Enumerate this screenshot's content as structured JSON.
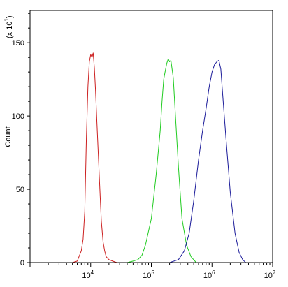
{
  "chart_data": {
    "type": "line",
    "title": "",
    "xlabel": "",
    "ylabel": "Count",
    "y_multiplier_label": "(x 10",
    "y_multiplier_exp": "1",
    "y_multiplier_close": ")",
    "x_scale": "log",
    "xlim": [
      1000,
      10000000
    ],
    "ylim": [
      0,
      172
    ],
    "y_ticks": [
      0,
      50,
      100,
      150
    ],
    "x_tick_labels": [
      {
        "base": "10",
        "exp": "4",
        "value": 10000
      },
      {
        "base": "10",
        "exp": "5",
        "value": 100000
      },
      {
        "base": "10",
        "exp": "6",
        "value": 1000000
      },
      {
        "base": "10",
        "exp": "7",
        "value": 10000000
      }
    ],
    "grid": false,
    "legend": "none",
    "series": [
      {
        "color": "#cc2020",
        "x": [
          5000,
          6000,
          7000,
          7500,
          8000,
          8500,
          9000,
          9500,
          10000,
          10500,
          11000,
          11500,
          12000,
          13000,
          14000,
          15000,
          16000,
          17000,
          18000,
          20000,
          23000,
          27000,
          30000
        ],
        "y": [
          0,
          1,
          8,
          16,
          35,
          85,
          120,
          137,
          142,
          140,
          143,
          133,
          118,
          85,
          55,
          28,
          14,
          8,
          4,
          2,
          1,
          0,
          0
        ]
      },
      {
        "color": "#22cc22",
        "x": [
          40000,
          50000,
          60000,
          70000,
          80000,
          100000,
          120000,
          140000,
          150000,
          160000,
          170000,
          180000,
          190000,
          200000,
          210000,
          230000,
          250000,
          280000,
          320000,
          380000,
          450000,
          550000
        ],
        "y": [
          0,
          1,
          2,
          5,
          12,
          30,
          60,
          90,
          110,
          125,
          131,
          136,
          139,
          137,
          138,
          126,
          100,
          65,
          30,
          12,
          4,
          0
        ]
      },
      {
        "color": "#1a1a99",
        "x": [
          200000,
          280000,
          350000,
          420000,
          500000,
          600000,
          700000,
          800000,
          900000,
          1000000,
          1100000,
          1200000,
          1300000,
          1400000,
          1500000,
          1700000,
          2000000,
          2400000,
          2800000,
          3200000,
          3600000
        ],
        "y": [
          0,
          2,
          8,
          20,
          42,
          70,
          90,
          105,
          120,
          130,
          135,
          137,
          138,
          132,
          115,
          85,
          48,
          20,
          7,
          2,
          0
        ]
      }
    ]
  }
}
